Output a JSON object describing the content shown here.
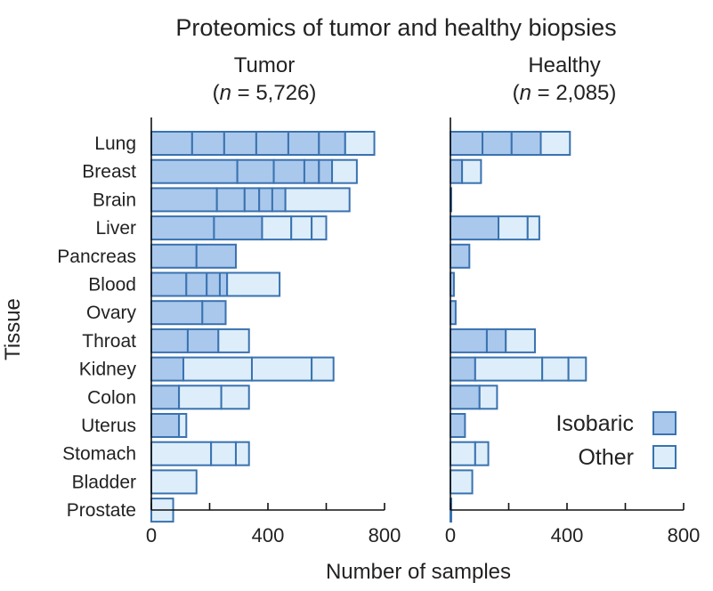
{
  "title": "Proteomics of tumor and healthy biopsies",
  "colors": {
    "isobaric_fill": "#a9c8ec",
    "other_fill": "#ddeefa",
    "stroke": "#3a72b0",
    "axis": "#111111"
  },
  "chart_data": {
    "type": "bar",
    "orientation": "horizontal",
    "stacked": true,
    "ylabel": "Tissue",
    "xlabel": "Number of samples",
    "categories": [
      "Lung",
      "Breast",
      "Brain",
      "Liver",
      "Pancreas",
      "Blood",
      "Ovary",
      "Throat",
      "Kidney",
      "Colon",
      "Uterus",
      "Stomach",
      "Bladder",
      "Prostate"
    ],
    "legend": {
      "position": "right",
      "items": [
        {
          "label": "Isobaric",
          "key": "isobaric"
        },
        {
          "label": "Other",
          "key": "other"
        }
      ]
    },
    "panels": [
      {
        "name": "Tumor",
        "n_label": "(n = 5,726)",
        "n_italic": "n",
        "n_value": "= 5,726",
        "xlim": [
          0,
          800
        ],
        "xticks": [
          0,
          400,
          800
        ],
        "bars": [
          {
            "category": "Lung",
            "segments": [
              {
                "v": 140,
                "t": "isobaric"
              },
              {
                "v": 110,
                "t": "isobaric"
              },
              {
                "v": 110,
                "t": "isobaric"
              },
              {
                "v": 110,
                "t": "isobaric"
              },
              {
                "v": 105,
                "t": "isobaric"
              },
              {
                "v": 90,
                "t": "isobaric"
              },
              {
                "v": 100,
                "t": "other"
              }
            ]
          },
          {
            "category": "Breast",
            "segments": [
              {
                "v": 295,
                "t": "isobaric"
              },
              {
                "v": 125,
                "t": "isobaric"
              },
              {
                "v": 105,
                "t": "isobaric"
              },
              {
                "v": 50,
                "t": "isobaric"
              },
              {
                "v": 45,
                "t": "isobaric"
              },
              {
                "v": 85,
                "t": "other"
              }
            ]
          },
          {
            "category": "Brain",
            "segments": [
              {
                "v": 225,
                "t": "isobaric"
              },
              {
                "v": 95,
                "t": "isobaric"
              },
              {
                "v": 50,
                "t": "isobaric"
              },
              {
                "v": 45,
                "t": "isobaric"
              },
              {
                "v": 45,
                "t": "isobaric"
              },
              {
                "v": 220,
                "t": "other"
              }
            ]
          },
          {
            "category": "Liver",
            "segments": [
              {
                "v": 215,
                "t": "isobaric"
              },
              {
                "v": 165,
                "t": "isobaric"
              },
              {
                "v": 100,
                "t": "other"
              },
              {
                "v": 70,
                "t": "other"
              },
              {
                "v": 50,
                "t": "other"
              }
            ]
          },
          {
            "category": "Pancreas",
            "segments": [
              {
                "v": 155,
                "t": "isobaric"
              },
              {
                "v": 135,
                "t": "isobaric"
              }
            ]
          },
          {
            "category": "Blood",
            "segments": [
              {
                "v": 120,
                "t": "isobaric"
              },
              {
                "v": 70,
                "t": "isobaric"
              },
              {
                "v": 45,
                "t": "isobaric"
              },
              {
                "v": 25,
                "t": "isobaric"
              },
              {
                "v": 180,
                "t": "other"
              }
            ]
          },
          {
            "category": "Ovary",
            "segments": [
              {
                "v": 175,
                "t": "isobaric"
              },
              {
                "v": 80,
                "t": "isobaric"
              }
            ]
          },
          {
            "category": "Throat",
            "segments": [
              {
                "v": 125,
                "t": "isobaric"
              },
              {
                "v": 105,
                "t": "isobaric"
              },
              {
                "v": 105,
                "t": "other"
              }
            ]
          },
          {
            "category": "Kidney",
            "segments": [
              {
                "v": 110,
                "t": "isobaric"
              },
              {
                "v": 235,
                "t": "other"
              },
              {
                "v": 205,
                "t": "other"
              },
              {
                "v": 75,
                "t": "other"
              }
            ]
          },
          {
            "category": "Colon",
            "segments": [
              {
                "v": 95,
                "t": "isobaric"
              },
              {
                "v": 145,
                "t": "other"
              },
              {
                "v": 95,
                "t": "other"
              }
            ]
          },
          {
            "category": "Uterus",
            "segments": [
              {
                "v": 95,
                "t": "isobaric"
              },
              {
                "v": 25,
                "t": "other"
              }
            ]
          },
          {
            "category": "Stomach",
            "segments": [
              {
                "v": 205,
                "t": "other"
              },
              {
                "v": 85,
                "t": "other"
              },
              {
                "v": 45,
                "t": "other"
              }
            ]
          },
          {
            "category": "Bladder",
            "segments": [
              {
                "v": 155,
                "t": "other"
              }
            ]
          },
          {
            "category": "Prostate",
            "segments": [
              {
                "v": 75,
                "t": "other"
              }
            ]
          }
        ]
      },
      {
        "name": "Healthy",
        "n_label": "(n = 2,085)",
        "n_italic": "n",
        "n_value": "= 2,085",
        "xlim": [
          0,
          800
        ],
        "xticks": [
          0,
          400,
          800
        ],
        "bars": [
          {
            "category": "Lung",
            "segments": [
              {
                "v": 110,
                "t": "isobaric"
              },
              {
                "v": 100,
                "t": "isobaric"
              },
              {
                "v": 100,
                "t": "isobaric"
              },
              {
                "v": 100,
                "t": "other"
              }
            ]
          },
          {
            "category": "Breast",
            "segments": [
              {
                "v": 40,
                "t": "isobaric"
              },
              {
                "v": 65,
                "t": "other"
              }
            ]
          },
          {
            "category": "Brain",
            "segments": [
              {
                "v": 3,
                "t": "isobaric"
              }
            ]
          },
          {
            "category": "Liver",
            "segments": [
              {
                "v": 165,
                "t": "isobaric"
              },
              {
                "v": 100,
                "t": "other"
              },
              {
                "v": 40,
                "t": "other"
              }
            ]
          },
          {
            "category": "Pancreas",
            "segments": [
              {
                "v": 65,
                "t": "isobaric"
              }
            ]
          },
          {
            "category": "Blood",
            "segments": [
              {
                "v": 12,
                "t": "isobaric"
              }
            ]
          },
          {
            "category": "Ovary",
            "segments": [
              {
                "v": 18,
                "t": "isobaric"
              }
            ]
          },
          {
            "category": "Throat",
            "segments": [
              {
                "v": 125,
                "t": "isobaric"
              },
              {
                "v": 65,
                "t": "isobaric"
              },
              {
                "v": 100,
                "t": "other"
              }
            ]
          },
          {
            "category": "Kidney",
            "segments": [
              {
                "v": 85,
                "t": "isobaric"
              },
              {
                "v": 230,
                "t": "other"
              },
              {
                "v": 90,
                "t": "other"
              },
              {
                "v": 60,
                "t": "other"
              }
            ]
          },
          {
            "category": "Colon",
            "segments": [
              {
                "v": 100,
                "t": "isobaric"
              },
              {
                "v": 60,
                "t": "other"
              }
            ]
          },
          {
            "category": "Uterus",
            "segments": [
              {
                "v": 50,
                "t": "isobaric"
              }
            ]
          },
          {
            "category": "Stomach",
            "segments": [
              {
                "v": 85,
                "t": "other"
              },
              {
                "v": 45,
                "t": "other"
              }
            ]
          },
          {
            "category": "Bladder",
            "segments": [
              {
                "v": 75,
                "t": "other"
              }
            ]
          },
          {
            "category": "Prostate",
            "segments": [
              {
                "v": 3,
                "t": "isobaric"
              }
            ]
          }
        ]
      }
    ]
  }
}
